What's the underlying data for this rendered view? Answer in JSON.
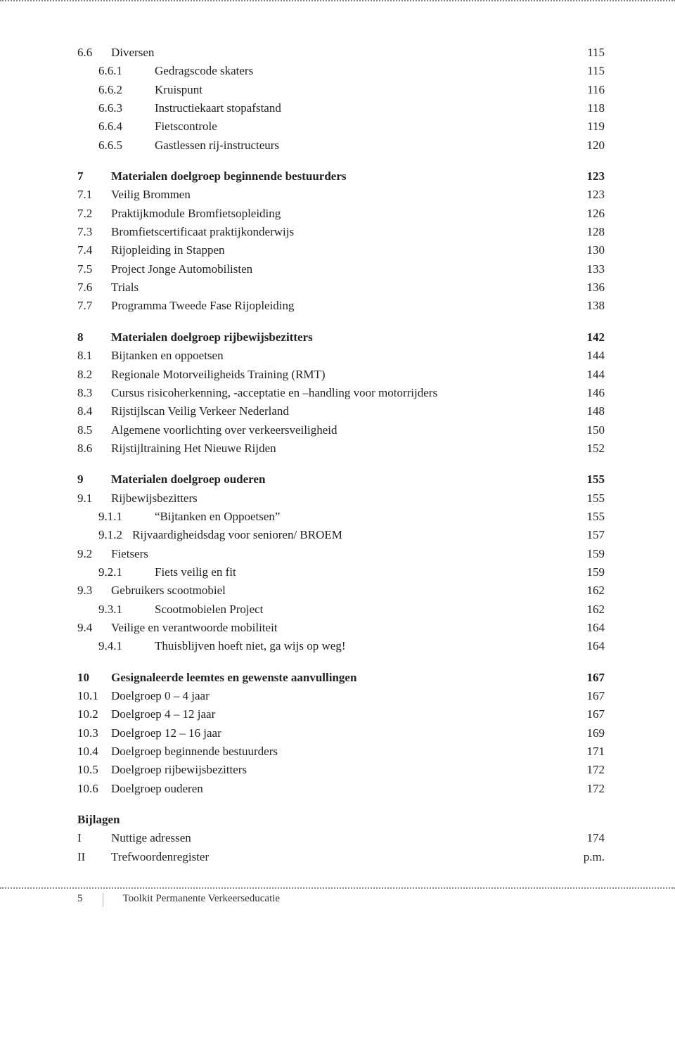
{
  "page_number": "5",
  "footer_title": "Toolkit Permanente Verkeerseducatie",
  "sections": [
    {
      "entries": [
        {
          "num": "6.6",
          "title": "Diversen",
          "page": "115",
          "indent": 0,
          "numClass": "w1",
          "bold": false
        },
        {
          "num": "6.6.1",
          "title": "Gedragscode skaters",
          "page": "115",
          "indent": 1,
          "numClass": "w2",
          "bold": false
        },
        {
          "num": "6.6.2",
          "title": "Kruispunt",
          "page": "116",
          "indent": 1,
          "numClass": "w2",
          "bold": false
        },
        {
          "num": "6.6.3",
          "title": "Instructiekaart stopafstand",
          "page": "118",
          "indent": 1,
          "numClass": "w2",
          "bold": false
        },
        {
          "num": "6.6.4",
          "title": "Fietscontrole",
          "page": "119",
          "indent": 1,
          "numClass": "w2",
          "bold": false
        },
        {
          "num": "6.6.5",
          "title": "Gastlessen rij-instructeurs",
          "page": "120",
          "indent": 1,
          "numClass": "w2",
          "bold": false
        }
      ]
    },
    {
      "entries": [
        {
          "num": "7",
          "title": "Materialen doelgroep beginnende bestuurders",
          "page": "123",
          "indent": 0,
          "numClass": "w1",
          "bold": true
        },
        {
          "num": "7.1",
          "title": "Veilig Brommen",
          "page": "123",
          "indent": 0,
          "numClass": "w1",
          "bold": false
        },
        {
          "num": "7.2",
          "title": "Praktijkmodule Bromfietsopleiding",
          "page": "126",
          "indent": 0,
          "numClass": "w1",
          "bold": false
        },
        {
          "num": "7.3",
          "title": "Bromfietscertificaat praktijkonderwijs",
          "page": "128",
          "indent": 0,
          "numClass": "w1",
          "bold": false
        },
        {
          "num": "7.4",
          "title": "Rijopleiding in Stappen",
          "page": "130",
          "indent": 0,
          "numClass": "w1",
          "bold": false
        },
        {
          "num": "7.5",
          "title": "Project Jonge Automobilisten",
          "page": "133",
          "indent": 0,
          "numClass": "w1",
          "bold": false
        },
        {
          "num": "7.6",
          "title": "Trials",
          "page": "136",
          "indent": 0,
          "numClass": "w1",
          "bold": false
        },
        {
          "num": "7.7",
          "title": "Programma Tweede Fase Rijopleiding",
          "page": "138",
          "indent": 0,
          "numClass": "w1",
          "bold": false
        }
      ]
    },
    {
      "entries": [
        {
          "num": "8",
          "title": "Materialen doelgroep rijbewijsbezitters",
          "page": "142",
          "indent": 0,
          "numClass": "w1",
          "bold": true
        },
        {
          "num": "8.1",
          "title": "Bijtanken en oppoetsen",
          "page": "144",
          "indent": 0,
          "numClass": "w1",
          "bold": false
        },
        {
          "num": "8.2",
          "title": "Regionale Motorveiligheids Training (RMT)",
          "page": "144",
          "indent": 0,
          "numClass": "w1",
          "bold": false
        },
        {
          "num": "8.3",
          "title": "Cursus risicoherkenning, -acceptatie en –handling voor motorrijders",
          "page": "146",
          "indent": 0,
          "numClass": "w1",
          "bold": false
        },
        {
          "num": "8.4",
          "title": "Rijstijlscan Veilig Verkeer Nederland",
          "page": "148",
          "indent": 0,
          "numClass": "w1",
          "bold": false
        },
        {
          "num": "8.5",
          "title": "Algemene voorlichting over verkeersveiligheid",
          "page": "150",
          "indent": 0,
          "numClass": "w1",
          "bold": false
        },
        {
          "num": "8.6",
          "title": "Rijstijltraining Het Nieuwe Rijden",
          "page": "152",
          "indent": 0,
          "numClass": "w1",
          "bold": false
        }
      ]
    },
    {
      "entries": [
        {
          "num": "9",
          "title": "Materialen doelgroep ouderen",
          "page": "155",
          "indent": 0,
          "numClass": "w1",
          "bold": true
        },
        {
          "num": "9.1",
          "title": "Rijbewijsbezitters",
          "page": "155",
          "indent": 0,
          "numClass": "w1",
          "bold": false
        },
        {
          "num": "9.1.1",
          "title": "“Bijtanken en Oppoetsen”",
          "page": "155",
          "indent": 1,
          "numClass": "w2",
          "bold": false
        },
        {
          "num": "9.1.2",
          "title": "Rijvaardigheidsdag voor senioren/ BROEM",
          "page": "157",
          "indent": 1,
          "numClass": "w2b",
          "bold": false,
          "tight": true
        },
        {
          "num": "9.2",
          "title": "Fietsers",
          "page": "159",
          "indent": 0,
          "numClass": "w1",
          "bold": false
        },
        {
          "num": "9.2.1",
          "title": "Fiets veilig en fit",
          "page": "159",
          "indent": 1,
          "numClass": "w2",
          "bold": false
        },
        {
          "num": "9.3",
          "title": "Gebruikers scootmobiel",
          "page": "162",
          "indent": 0,
          "numClass": "w1",
          "bold": false
        },
        {
          "num": "9.3.1",
          "title": "Scootmobielen Project",
          "page": "162",
          "indent": 1,
          "numClass": "w2",
          "bold": false
        },
        {
          "num": "9.4",
          "title": "Veilige en verantwoorde mobiliteit",
          "page": "164",
          "indent": 0,
          "numClass": "w1",
          "bold": false
        },
        {
          "num": "9.4.1",
          "title": "Thuisblijven hoeft niet, ga wijs op weg!",
          "page": "164",
          "indent": 1,
          "numClass": "w2",
          "bold": false
        }
      ]
    },
    {
      "entries": [
        {
          "num": "10",
          "title": "Gesignaleerde leemtes en gewenste aanvullingen",
          "page": "167",
          "indent": 0,
          "numClass": "w1",
          "bold": true
        },
        {
          "num": "10.1",
          "title": "Doelgroep 0 – 4 jaar",
          "page": "167",
          "indent": 0,
          "numClass": "w1",
          "bold": false
        },
        {
          "num": "10.2",
          "title": "Doelgroep 4 – 12 jaar",
          "page": "167",
          "indent": 0,
          "numClass": "w1",
          "bold": false
        },
        {
          "num": "10.3",
          "title": "Doelgroep 12 – 16 jaar",
          "page": "169",
          "indent": 0,
          "numClass": "w1",
          "bold": false
        },
        {
          "num": "10.4",
          "title": "Doelgroep beginnende bestuurders",
          "page": "171",
          "indent": 0,
          "numClass": "w1",
          "bold": false
        },
        {
          "num": "10.5",
          "title": "Doelgroep rijbewijsbezitters",
          "page": "172",
          "indent": 0,
          "numClass": "w1",
          "bold": false
        },
        {
          "num": "10.6",
          "title": "Doelgroep ouderen",
          "page": "172",
          "indent": 0,
          "numClass": "w1",
          "bold": false
        }
      ]
    },
    {
      "entries": [
        {
          "num": "",
          "title": "Bijlagen",
          "page": "",
          "indent": 0,
          "numClass": "",
          "bold": true
        },
        {
          "num": "I",
          "title": "Nuttige adressen",
          "page": "174",
          "indent": 0,
          "numClass": "w1",
          "bold": false
        },
        {
          "num": "II",
          "title": "Trefwoordenregister",
          "page": "p.m.",
          "indent": 0,
          "numClass": "w1",
          "bold": false
        }
      ]
    }
  ]
}
